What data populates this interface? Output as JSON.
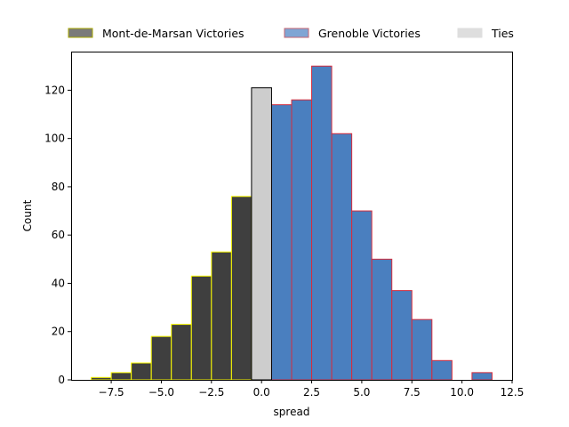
{
  "chart_data": {
    "type": "bar",
    "xlabel": "spread",
    "ylabel": "Count",
    "xlim": [
      -9.5,
      12.5
    ],
    "ylim": [
      0,
      136
    ],
    "xticks": [
      -7.5,
      -5.0,
      -2.5,
      0.0,
      2.5,
      5.0,
      7.5,
      10.0,
      12.5
    ],
    "xtick_labels": [
      "−7.5",
      "−5.0",
      "−2.5",
      "0.0",
      "2.5",
      "5.0",
      "7.5",
      "10.0",
      "12.5"
    ],
    "yticks": [
      0,
      20,
      40,
      60,
      80,
      100,
      120
    ],
    "ytick_labels": [
      "0",
      "20",
      "40",
      "60",
      "80",
      "100",
      "120"
    ],
    "grid": false,
    "legend_position": "top, outside plot area, single row",
    "bin_width": 1,
    "series": [
      {
        "name": "Mont-de-Marsan Victories",
        "fill": "#3f3f3f",
        "edge": "#ffff00",
        "legend_fill": "#7a7a7a",
        "legend_edge": "#a8a800",
        "bins": [
          {
            "center": -8,
            "count": 1
          },
          {
            "center": -7,
            "count": 3
          },
          {
            "center": -6,
            "count": 7
          },
          {
            "center": -5,
            "count": 18
          },
          {
            "center": -4,
            "count": 23
          },
          {
            "center": -3,
            "count": 43
          },
          {
            "center": -2,
            "count": 53
          },
          {
            "center": -1,
            "count": 76
          }
        ]
      },
      {
        "name": "Grenoble Victories",
        "fill": "#4a7fbf",
        "edge": "#d62d3c",
        "legend_fill": "#7fa5d4",
        "legend_edge": "#c66470",
        "bins": [
          {
            "center": 1,
            "count": 114
          },
          {
            "center": 2,
            "count": 116
          },
          {
            "center": 3,
            "count": 130
          },
          {
            "center": 4,
            "count": 102
          },
          {
            "center": 5,
            "count": 70
          },
          {
            "center": 6,
            "count": 50
          },
          {
            "center": 7,
            "count": 37
          },
          {
            "center": 8,
            "count": 25
          },
          {
            "center": 9,
            "count": 8
          },
          {
            "center": 11,
            "count": 3
          }
        ]
      },
      {
        "name": "Ties",
        "fill": "#cdcdcd",
        "edge": "#000000",
        "legend_fill": "#dedede",
        "legend_edge": "#dedede",
        "bins": [
          {
            "center": 0,
            "count": 121
          }
        ]
      }
    ]
  }
}
